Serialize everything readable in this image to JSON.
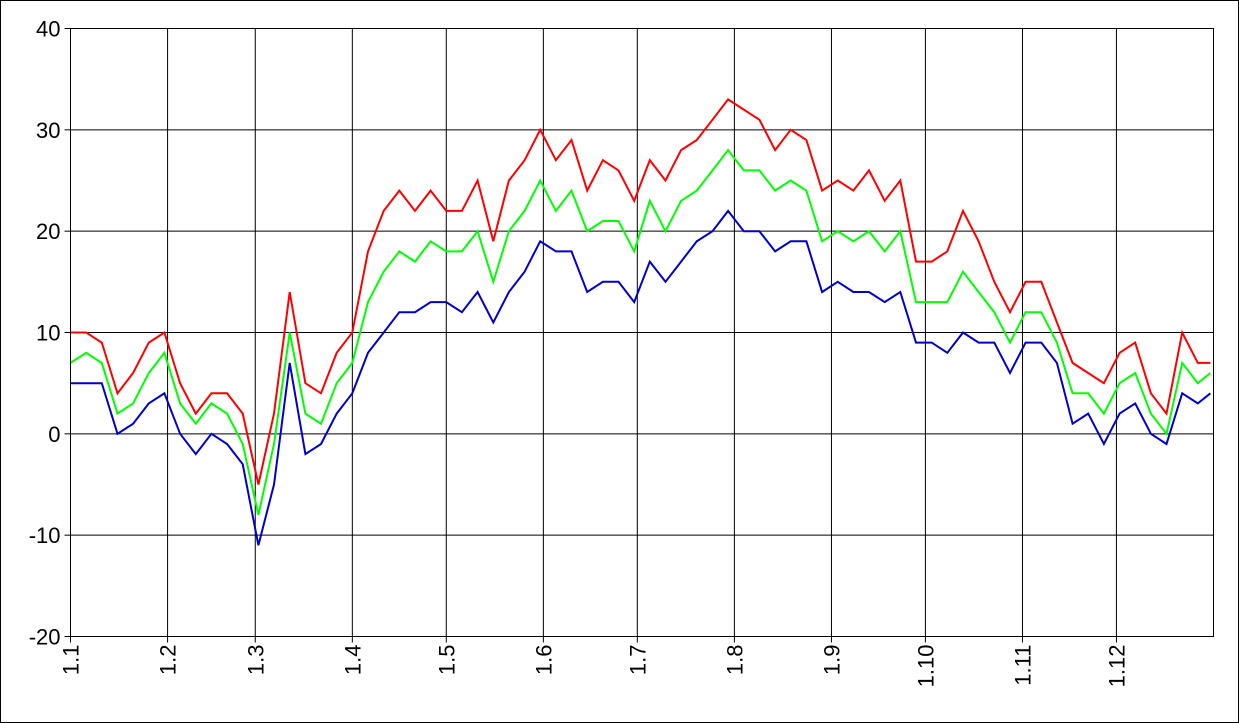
{
  "chart_data": {
    "type": "line",
    "x": [
      0,
      5,
      10,
      15,
      20,
      25,
      30,
      35,
      40,
      45,
      50,
      55,
      60,
      65,
      70,
      75,
      80,
      85,
      90,
      95,
      100,
      105,
      110,
      115,
      120,
      125,
      130,
      135,
      140,
      145,
      150,
      155,
      160,
      165,
      170,
      175,
      180,
      185,
      190,
      195,
      200,
      205,
      210,
      215,
      220,
      225,
      230,
      235,
      240,
      245,
      250,
      255,
      260,
      265,
      270,
      275,
      280,
      285,
      290,
      295,
      300,
      305,
      310,
      315,
      320,
      325,
      330,
      335,
      340,
      345,
      350,
      355,
      360,
      364
    ],
    "series": [
      {
        "color": "#ff0000",
        "values": [
          10,
          10,
          9,
          4,
          6,
          9,
          10,
          5,
          2,
          4,
          4,
          2,
          -5,
          2,
          14,
          5,
          4,
          8,
          10,
          18,
          22,
          24,
          22,
          24,
          22,
          22,
          25,
          19,
          25,
          27,
          30,
          27,
          29,
          24,
          27,
          26,
          23,
          27,
          25,
          28,
          29,
          31,
          33,
          32,
          31,
          28,
          30,
          29,
          24,
          25,
          24,
          26,
          23,
          25,
          17,
          17,
          18,
          22,
          19,
          15,
          12,
          15,
          15,
          11,
          7,
          6,
          5,
          8,
          9,
          4,
          2,
          10,
          7,
          7
        ]
      },
      {
        "color": "#00ff00",
        "values": [
          7,
          8,
          7,
          2,
          3,
          6,
          8,
          3,
          1,
          3,
          2,
          -1,
          -8,
          -1,
          10,
          2,
          1,
          5,
          7,
          13,
          16,
          18,
          17,
          19,
          18,
          18,
          20,
          15,
          20,
          22,
          25,
          22,
          24,
          20,
          21,
          21,
          18,
          23,
          20,
          23,
          24,
          26,
          28,
          26,
          26,
          24,
          25,
          24,
          19,
          20,
          19,
          20,
          18,
          20,
          13,
          13,
          13,
          16,
          14,
          12,
          9,
          12,
          12,
          9,
          4,
          4,
          2,
          5,
          6,
          2,
          0,
          7,
          5,
          6
        ]
      },
      {
        "color": "#0000cc",
        "values": [
          5,
          5,
          5,
          0,
          1,
          3,
          4,
          0,
          -2,
          0,
          -1,
          -3,
          -11,
          -5,
          7,
          -2,
          -1,
          2,
          4,
          8,
          10,
          12,
          12,
          13,
          13,
          12,
          14,
          11,
          14,
          16,
          19,
          18,
          18,
          14,
          15,
          15,
          13,
          17,
          15,
          17,
          19,
          20,
          22,
          20,
          20,
          18,
          19,
          19,
          14,
          15,
          14,
          14,
          13,
          14,
          9,
          9,
          8,
          10,
          9,
          9,
          6,
          9,
          9,
          7,
          1,
          2,
          -1,
          2,
          3,
          0,
          -1,
          4,
          3,
          4
        ]
      }
    ],
    "xlim": [
      0,
      365
    ],
    "xticks": [
      {
        "value": 0,
        "label": "1.1"
      },
      {
        "value": 31,
        "label": "1.2"
      },
      {
        "value": 59,
        "label": "1.3"
      },
      {
        "value": 90,
        "label": "1.4"
      },
      {
        "value": 120,
        "label": "1.5"
      },
      {
        "value": 151,
        "label": "1.6"
      },
      {
        "value": 181,
        "label": "1.7"
      },
      {
        "value": 212,
        "label": "1.8"
      },
      {
        "value": 243,
        "label": "1.9"
      },
      {
        "value": 273,
        "label": "1.10"
      },
      {
        "value": 304,
        "label": "1.11"
      },
      {
        "value": 334,
        "label": "1.12"
      }
    ],
    "ylim": [
      -20,
      40
    ],
    "yticks": [
      -20,
      -10,
      0,
      10,
      20,
      30,
      40
    ],
    "grid": true
  }
}
